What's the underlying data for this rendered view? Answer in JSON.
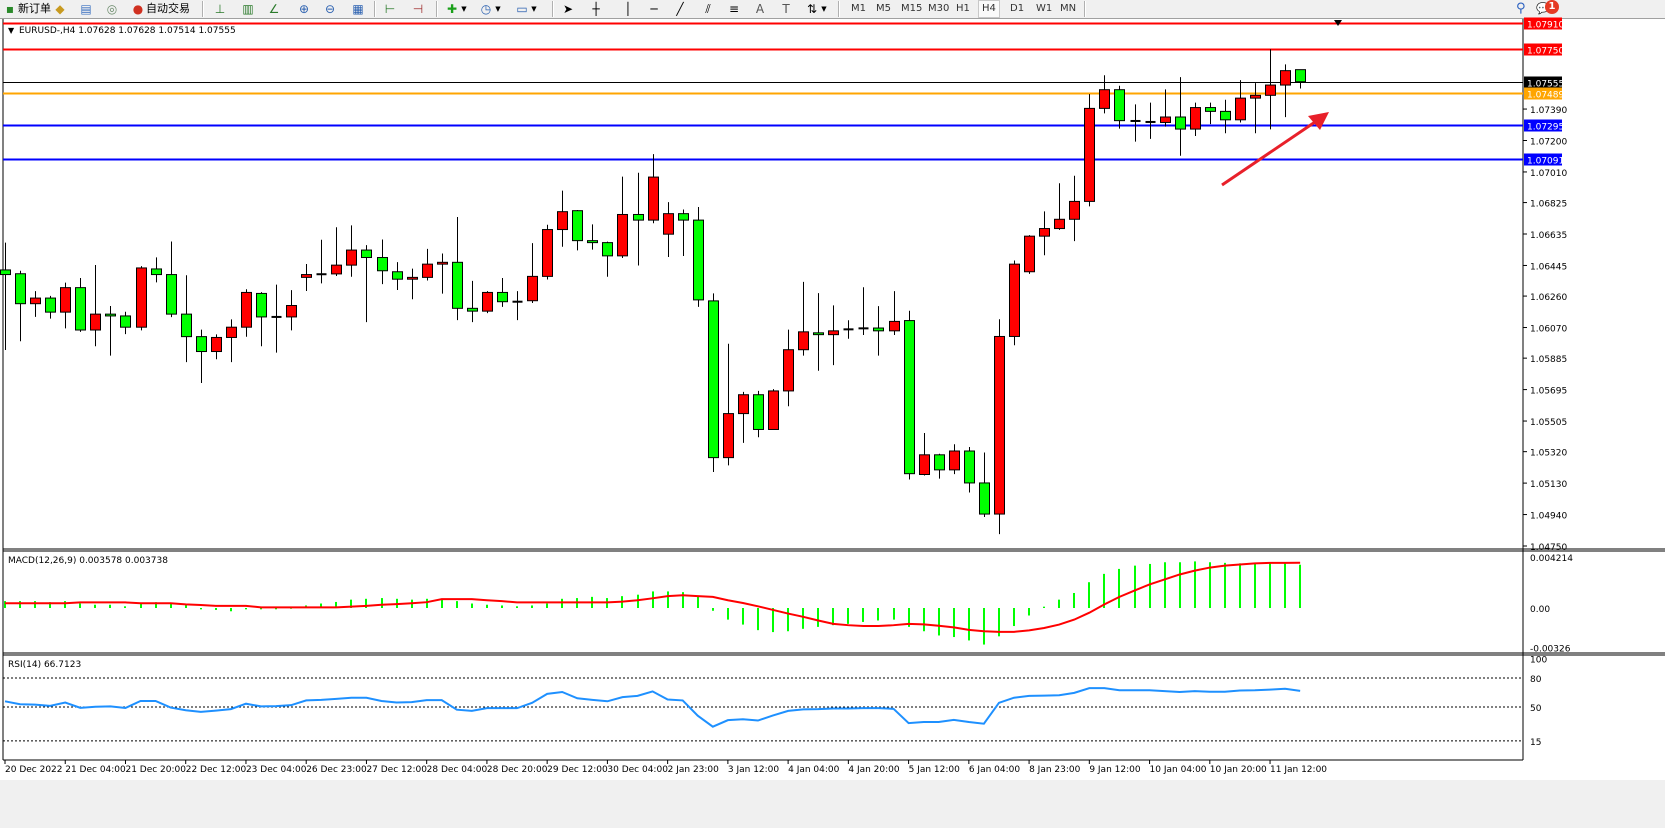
{
  "toolbar": {
    "new_order": "新订单",
    "auto_trading": "自动交易",
    "timeframes": [
      "M1",
      "M5",
      "M15",
      "M30",
      "H1",
      "H4",
      "D1",
      "W1",
      "MN"
    ],
    "active_timeframe": "H4",
    "notification_count": "1",
    "icons": [
      "market-watch-icon",
      "data-window-icon",
      "navigator-icon",
      "bar-chart-icon",
      "candlestick-chart-icon",
      "line-chart-icon",
      "zoom-in-icon",
      "zoom-out-icon",
      "tile-windows-icon",
      "chart-shift-icon",
      "autoscroll-icon",
      "indicators-icon",
      "periods-icon",
      "templates-icon",
      "cursor-icon",
      "crosshair-icon",
      "vertical-line-icon",
      "horizontal-line-icon",
      "trendline-icon",
      "equidistant-channel-icon",
      "fibonacci-icon",
      "text-icon",
      "text-label-icon",
      "arrows-icon",
      "search-icon",
      "chat-icon"
    ]
  },
  "chart": {
    "header": "EURUSD-,H4  1.07628 1.07628 1.07514 1.07555"
  },
  "chart_data": [
    {
      "type": "candlestick",
      "symbol": "EURUSD-",
      "timeframe": "H4",
      "ohlc_order": [
        "open",
        "high",
        "low",
        "close"
      ],
      "colors": {
        "bull": "#ff0000",
        "bear": "#00ff00",
        "outline": "#000000"
      },
      "ylim": [
        1.0475,
        1.0791
      ],
      "grid": false,
      "price_ticks": [
        "1.07390",
        "1.07200",
        "1.07010",
        "1.06825",
        "1.06635",
        "1.06445",
        "1.06260",
        "1.06070",
        "1.05885",
        "1.05695",
        "1.05505",
        "1.05320",
        "1.05130",
        "1.04940",
        "1.04750"
      ],
      "x_tick_labels": [
        "20 Dec 2022",
        "21 Dec 04:00",
        "21 Dec 20:00",
        "22 Dec 12:00",
        "23 Dec 04:00",
        "26 Dec 23:00",
        "27 Dec 12:00",
        "28 Dec 04:00",
        "28 Dec 20:00",
        "29 Dec 12:00",
        "30 Dec 04:00",
        "2 Jan 23:00",
        "3 Jan 12:00",
        "4 Jan 04:00",
        "4 Jan 20:00",
        "5 Jan 12:00",
        "6 Jan 04:00",
        "8 Jan 23:00",
        "9 Jan 12:00",
        "10 Jan 04:00",
        "10 Jan 20:00",
        "11 Jan 12:00"
      ],
      "hlines": [
        {
          "price": 1.0791,
          "label": "1.07910",
          "color": "#ff0000"
        },
        {
          "price": 1.0775,
          "label": "1.07750",
          "color": "#ff0000"
        },
        {
          "price": 1.07555,
          "label": "1.07555",
          "color": "#000000"
        },
        {
          "price": 1.07489,
          "label": "1.07489",
          "color": "#ffa500"
        },
        {
          "price": 1.07295,
          "label": "1.07295",
          "color": "#0000ff"
        },
        {
          "price": 1.07091,
          "label": "1.07091",
          "color": "#0000ff"
        }
      ],
      "annotation_arrow_color": "#e8202a",
      "ohlc": [
        [
          1.06418,
          1.06583,
          1.05934,
          1.0639
        ],
        [
          1.06395,
          1.06413,
          1.05987,
          1.06214
        ],
        [
          1.06214,
          1.0629,
          1.06134,
          1.06248
        ],
        [
          1.06248,
          1.06261,
          1.06124,
          1.06163
        ],
        [
          1.06163,
          1.06341,
          1.06065,
          1.06311
        ],
        [
          1.06311,
          1.06369,
          1.06044,
          1.06055
        ],
        [
          1.06055,
          1.06448,
          1.05957,
          1.06151
        ],
        [
          1.06151,
          1.062,
          1.059,
          1.0614
        ],
        [
          1.0614,
          1.06165,
          1.0603,
          1.06072
        ],
        [
          1.06072,
          1.06441,
          1.06053,
          1.0643
        ],
        [
          1.06424,
          1.06494,
          1.06343,
          1.0639
        ],
        [
          1.0639,
          1.0659,
          1.06133,
          1.06151
        ],
        [
          1.06151,
          1.06386,
          1.05861,
          1.06015
        ],
        [
          1.06015,
          1.06057,
          1.05735,
          1.05925
        ],
        [
          1.05925,
          1.06029,
          1.05878,
          1.0601
        ],
        [
          1.0601,
          1.06119,
          1.05861,
          1.06072
        ],
        [
          1.06072,
          1.06301,
          1.06014,
          1.06282
        ],
        [
          1.06276,
          1.06284,
          1.05957,
          1.06134
        ],
        [
          1.06134,
          1.06329,
          1.05918,
          1.06134
        ],
        [
          1.06134,
          1.06296,
          1.06053,
          1.06203
        ],
        [
          1.06373,
          1.06454,
          1.06291,
          1.0639
        ],
        [
          1.06392,
          1.066,
          1.06337,
          1.06392
        ],
        [
          1.06394,
          1.06676,
          1.06381,
          1.06447
        ],
        [
          1.06447,
          1.06687,
          1.06377,
          1.06538
        ],
        [
          1.06538,
          1.06568,
          1.06103,
          1.06493
        ],
        [
          1.06493,
          1.06602,
          1.06332,
          1.06413
        ],
        [
          1.06407,
          1.06465,
          1.06297,
          1.06362
        ],
        [
          1.06362,
          1.06426,
          1.06241,
          1.06373
        ],
        [
          1.06373,
          1.06545,
          1.06354,
          1.06453
        ],
        [
          1.06453,
          1.06517,
          1.06275,
          1.06464
        ],
        [
          1.06464,
          1.06738,
          1.06115,
          1.06186
        ],
        [
          1.06186,
          1.06352,
          1.06103,
          1.06169
        ],
        [
          1.06169,
          1.0629,
          1.06157,
          1.06282
        ],
        [
          1.06282,
          1.06369,
          1.06195,
          1.06226
        ],
        [
          1.06226,
          1.0629,
          1.06115,
          1.06224
        ],
        [
          1.06232,
          1.0658,
          1.06218,
          1.06379
        ],
        [
          1.06379,
          1.06691,
          1.0636,
          1.06662
        ],
        [
          1.06662,
          1.06897,
          1.06558,
          1.0677
        ],
        [
          1.06776,
          1.0678,
          1.06536,
          1.06595
        ],
        [
          1.06595,
          1.06693,
          1.06541,
          1.06583
        ],
        [
          1.06583,
          1.06589,
          1.06377,
          1.06503
        ],
        [
          1.06503,
          1.06982,
          1.0649,
          1.06753
        ],
        [
          1.06753,
          1.07005,
          1.06445,
          1.06719
        ],
        [
          1.06719,
          1.07118,
          1.067,
          1.06979
        ],
        [
          1.06634,
          1.06828,
          1.06496,
          1.06758
        ],
        [
          1.06758,
          1.06783,
          1.06502,
          1.06719
        ],
        [
          1.06719,
          1.06798,
          1.06195,
          1.06237
        ],
        [
          1.06231,
          1.06276,
          1.05197,
          1.05284
        ],
        [
          1.05284,
          1.05972,
          1.05237,
          1.0555
        ],
        [
          1.0555,
          1.05681,
          1.05373,
          1.05664
        ],
        [
          1.05664,
          1.05687,
          1.05407,
          1.05454
        ],
        [
          1.05454,
          1.05698,
          1.05454,
          1.05687
        ],
        [
          1.05687,
          1.06057,
          1.05594,
          1.05936
        ],
        [
          1.05936,
          1.06346,
          1.059,
          1.06044
        ],
        [
          1.06038,
          1.06278,
          1.05809,
          1.06027
        ],
        [
          1.06027,
          1.06204,
          1.05843,
          1.0605
        ],
        [
          1.06059,
          1.06114,
          1.06002,
          1.06059
        ],
        [
          1.06065,
          1.06313,
          1.06025,
          1.06065
        ],
        [
          1.06067,
          1.06199,
          1.059,
          1.0605
        ],
        [
          1.0605,
          1.0629,
          1.06025,
          1.06107
        ],
        [
          1.06112,
          1.06171,
          1.05152,
          1.05187
        ],
        [
          1.05182,
          1.05433,
          1.05176,
          1.05301
        ],
        [
          1.05301,
          1.05307,
          1.05157,
          1.0521
        ],
        [
          1.0521,
          1.05365,
          1.05184,
          1.05324
        ],
        [
          1.05324,
          1.05348,
          1.05073,
          1.05131
        ],
        [
          1.05131,
          1.05315,
          1.04925,
          1.04943
        ],
        [
          1.04943,
          1.0612,
          1.04822,
          1.06016
        ],
        [
          1.06016,
          1.06475,
          1.05963,
          1.06453
        ],
        [
          1.06407,
          1.06628,
          1.06394,
          1.06622
        ],
        [
          1.06622,
          1.06772,
          1.06507,
          1.06668
        ],
        [
          1.06668,
          1.06942,
          1.0666,
          1.06724
        ],
        [
          1.06724,
          1.06987,
          1.06592,
          1.06832
        ],
        [
          1.06832,
          1.0748,
          1.06802,
          1.07394
        ],
        [
          1.07394,
          1.07594,
          1.07364,
          1.07507
        ],
        [
          1.07507,
          1.07531,
          1.07272,
          1.0732
        ],
        [
          1.07318,
          1.07418,
          1.07193,
          1.07318
        ],
        [
          1.07312,
          1.07429,
          1.0721,
          1.07312
        ],
        [
          1.07309,
          1.07509,
          1.07284,
          1.07342
        ],
        [
          1.07342,
          1.07583,
          1.07108,
          1.07269
        ],
        [
          1.07269,
          1.07429,
          1.07227,
          1.07399
        ],
        [
          1.07399,
          1.07429,
          1.07299,
          1.07376
        ],
        [
          1.07376,
          1.07446,
          1.07244,
          1.07325
        ],
        [
          1.07325,
          1.07565,
          1.07309,
          1.07456
        ],
        [
          1.07456,
          1.07547,
          1.07244,
          1.07473
        ],
        [
          1.07473,
          1.07751,
          1.07267,
          1.07535
        ],
        [
          1.07535,
          1.0766,
          1.07341,
          1.07622
        ],
        [
          1.07628,
          1.07628,
          1.07514,
          1.07555
        ]
      ]
    },
    {
      "type": "bar+line",
      "title": "MACD(12,26,9) 0.003578 0.003738",
      "ticks": [
        "0.004214",
        "0.00",
        "-0.00326"
      ],
      "ylim": [
        -0.00326,
        0.004214
      ],
      "colors": {
        "histogram": "#00ff00",
        "signal": "#ff0000"
      },
      "histogram": [
        0.00057,
        0.00057,
        0.00057,
        0.00048,
        0.00057,
        0.00037,
        0.00027,
        0.00027,
        0.00014,
        0.00037,
        0.00048,
        0.00037,
        0.00025,
        -0.00011,
        -0.00016,
        -0.00027,
        -0.00011,
        -0.00011,
        -0.00011,
        2e-05,
        0.00021,
        0.00037,
        0.0005,
        0.00069,
        0.00076,
        0.00082,
        0.00076,
        0.00069,
        0.00076,
        0.00076,
        0.00057,
        0.00037,
        0.00027,
        0.00021,
        0.00014,
        0.00021,
        0.00037,
        0.00076,
        0.00082,
        0.00092,
        0.00082,
        0.00098,
        0.0011,
        0.00137,
        0.00137,
        0.00131,
        0.00092,
        -0.00023,
        -0.00096,
        -0.00137,
        -0.00183,
        -0.00199,
        -0.00192,
        -0.00172,
        -0.00156,
        -0.00142,
        -0.00131,
        -0.00115,
        -0.00103,
        -0.00096,
        -0.00156,
        -0.00192,
        -0.00227,
        -0.0024,
        -0.00268,
        -0.00302,
        -0.00234,
        -0.00149,
        -0.00062,
        0.00011,
        0.00069,
        0.00124,
        0.00213,
        0.00282,
        0.00323,
        0.0035,
        0.00364,
        0.00378,
        0.00378,
        0.00385,
        0.00378,
        0.00373,
        0.00369,
        0.00369,
        0.00369,
        0.00369,
        0.003578
      ],
      "signal": [
        0.00039,
        0.00039,
        0.00039,
        0.00039,
        0.00039,
        0.00046,
        0.00046,
        0.00046,
        0.00046,
        0.00039,
        0.00039,
        0.00039,
        0.0003,
        0.00025,
        0.00018,
        0.00018,
        0.00018,
        5e-05,
        5e-05,
        5e-05,
        5e-05,
        5e-05,
        5e-05,
        0.00011,
        0.00018,
        0.00027,
        0.00032,
        0.00039,
        0.00048,
        0.00073,
        0.00073,
        0.00073,
        0.00064,
        0.00057,
        0.00046,
        0.00046,
        0.00046,
        0.00046,
        0.00046,
        0.00046,
        0.00046,
        0.00053,
        0.00064,
        0.0008,
        0.00098,
        0.00105,
        0.00098,
        0.00092,
        0.00064,
        0.00041,
        0.00014,
        -0.00016,
        -0.00046,
        -0.00073,
        -0.00103,
        -0.00131,
        -0.00142,
        -0.00149,
        -0.00149,
        -0.00142,
        -0.00131,
        -0.00135,
        -0.00147,
        -0.0016,
        -0.00181,
        -0.00192,
        -0.00197,
        -0.00197,
        -0.00185,
        -0.00165,
        -0.00137,
        -0.00096,
        -0.00039,
        0.0003,
        0.00092,
        0.00144,
        0.00195,
        0.00236,
        0.00277,
        0.00309,
        0.00334,
        0.0035,
        0.00359,
        0.00369,
        0.00373,
        0.00373,
        0.003738
      ]
    },
    {
      "type": "line",
      "title": "RSI(14) 66.7123",
      "ticks": [
        "100",
        "80",
        "50",
        "15"
      ],
      "levels": [
        80,
        50,
        15
      ],
      "ylim": [
        0,
        100
      ],
      "color": "#1e90ff",
      "values": [
        55.9,
        52.8,
        52.5,
        51.2,
        54.6,
        49.1,
        50.3,
        50.6,
        49,
        56.2,
        56.2,
        49.4,
        46.6,
        45,
        46.3,
        47.8,
        53.4,
        50.6,
        50.9,
        51.9,
        56.8,
        57.4,
        58.4,
        59.6,
        59.6,
        56.2,
        54.6,
        55,
        57.1,
        57.1,
        47.2,
        46,
        48.8,
        48.8,
        48.8,
        54.3,
        63.6,
        65.5,
        59,
        57.4,
        55.9,
        60.2,
        61.5,
        66.1,
        57.7,
        56.8,
        41,
        29.6,
        36.4,
        37.3,
        36,
        41.3,
        46,
        47.5,
        47.8,
        48.5,
        48.5,
        48.8,
        48.8,
        48.1,
        33.3,
        34.5,
        34.5,
        36.7,
        34.5,
        32.7,
        54.3,
        59.6,
        61.5,
        61.8,
        62.1,
        64.6,
        69.5,
        69.5,
        67.3,
        67.3,
        67.3,
        66.4,
        65.5,
        66.4,
        65.8,
        65.8,
        67,
        67.3,
        68,
        68.9,
        66.7123
      ]
    }
  ]
}
